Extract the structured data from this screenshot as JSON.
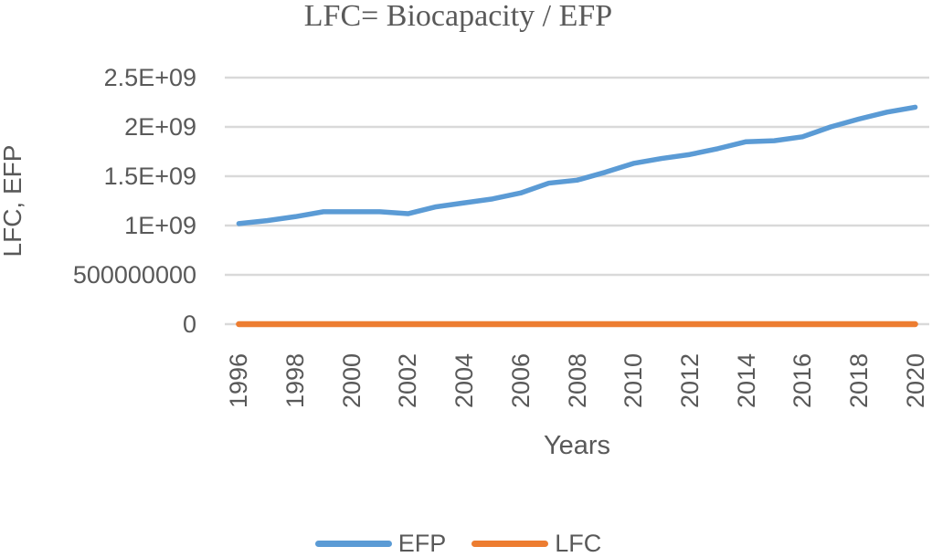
{
  "chart_data": {
    "type": "line",
    "title": "LFC= Biocapacity / EFP",
    "xlabel": "Years",
    "ylabel": "LFC, EFP",
    "x": [
      1996,
      1997,
      1998,
      1999,
      2000,
      2001,
      2002,
      2003,
      2004,
      2005,
      2006,
      2007,
      2008,
      2009,
      2010,
      2011,
      2012,
      2013,
      2014,
      2015,
      2016,
      2017,
      2018,
      2019,
      2020
    ],
    "x_tick_labels": [
      "1996",
      "1998",
      "2000",
      "2002",
      "2004",
      "2006",
      "2008",
      "2010",
      "2012",
      "2014",
      "2016",
      "2018",
      "2020"
    ],
    "y_ticks": [
      {
        "value": 0,
        "label": "0"
      },
      {
        "value": 500000000,
        "label": "500000000"
      },
      {
        "value": 1000000000,
        "label": "1E+09"
      },
      {
        "value": 1500000000,
        "label": "1.5E+09"
      },
      {
        "value": 2000000000,
        "label": "2E+09"
      },
      {
        "value": 2500000000,
        "label": "2.5E+09"
      }
    ],
    "ylim": [
      0,
      2500000000
    ],
    "grid": true,
    "legend_position": "bottom",
    "colors": {
      "efp_line": "#5B9BD5",
      "lfc_line": "#ED7D31",
      "gridline": "#D9D9D9",
      "text": "#595959"
    },
    "series": [
      {
        "name": "EFP",
        "color": "#5B9BD5",
        "values": [
          1020000000,
          1050000000,
          1090000000,
          1140000000,
          1140000000,
          1140000000,
          1120000000,
          1190000000,
          1230000000,
          1270000000,
          1330000000,
          1430000000,
          1460000000,
          1540000000,
          1630000000,
          1680000000,
          1720000000,
          1780000000,
          1850000000,
          1860000000,
          1900000000,
          2000000000,
          2080000000,
          2150000000,
          2200000000
        ]
      },
      {
        "name": "LFC",
        "color": "#ED7D31",
        "values": [
          0,
          0,
          0,
          0,
          0,
          0,
          0,
          0,
          0,
          0,
          0,
          0,
          0,
          0,
          0,
          0,
          0,
          0,
          0,
          0,
          0,
          0,
          0,
          0,
          0
        ]
      }
    ]
  }
}
